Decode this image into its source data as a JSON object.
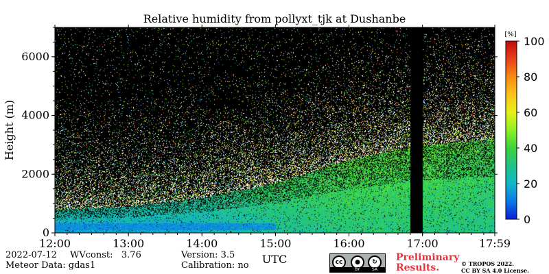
{
  "chart_data": {
    "type": "heatmap",
    "title": "Relative humidity from pollyxt_tjk at Dushanbe",
    "xlabel": "UTC",
    "ylabel": "Height (m)",
    "x_range": [
      "12:00",
      "17:59"
    ],
    "x_ticks": [
      "12:00",
      "13:00",
      "14:00",
      "15:00",
      "16:00",
      "17:00",
      "17:59"
    ],
    "ylim": [
      0,
      7000
    ],
    "y_ticks": [
      0,
      2000,
      4000,
      6000
    ],
    "colorbar": {
      "unit": "[%]",
      "range": [
        0,
        100
      ],
      "ticks": [
        0,
        20,
        40,
        60,
        80,
        100
      ],
      "colormap": [
        "#0a1fd6",
        "#0a78e8",
        "#10b7c8",
        "#20c28a",
        "#3ad43c",
        "#8ef022",
        "#e6f01a",
        "#fcc419",
        "#f88a14",
        "#e8401a",
        "#c20a0a"
      ]
    },
    "background_color": "#000000",
    "no_data_gap": {
      "start": "16:50",
      "end": "17:00"
    },
    "rh_profile_summary": [
      {
        "time": "12:00",
        "moist_layer_top_m": 800,
        "rh_percent_in_layer": 15
      },
      {
        "time": "13:00",
        "moist_layer_top_m": 900,
        "rh_percent_in_layer": 15
      },
      {
        "time": "14:00",
        "moist_layer_top_m": 1200,
        "rh_percent_in_layer": 18
      },
      {
        "time": "15:00",
        "moist_layer_top_m": 1700,
        "rh_percent_in_layer": 25
      },
      {
        "time": "16:00",
        "moist_layer_top_m": 2500,
        "rh_percent_in_layer": 30
      },
      {
        "time": "17:00",
        "moist_layer_top_m": 3000,
        "rh_percent_in_layer": 30
      },
      {
        "time": "17:59",
        "moist_layer_top_m": 3200,
        "rh_percent_in_layer": 28
      }
    ]
  },
  "footer": {
    "date": "2022-07-12",
    "wvconst": "WVconst:   3.76",
    "meteor": "Meteor Data: gdas1",
    "version": "Version: 3.5",
    "calibration": "Calibration: no",
    "preliminary_line1": "Preliminary",
    "preliminary_line2": "Results.",
    "copyright_line1": "© TROPOS 2022.",
    "copyright_line2": "CC BY SA 4.0 License.",
    "cc_logo": {
      "main": "cc",
      "by": "BY",
      "sa": "SA",
      "person_icon": "person-icon",
      "share_icon": "share-alike-icon"
    }
  }
}
